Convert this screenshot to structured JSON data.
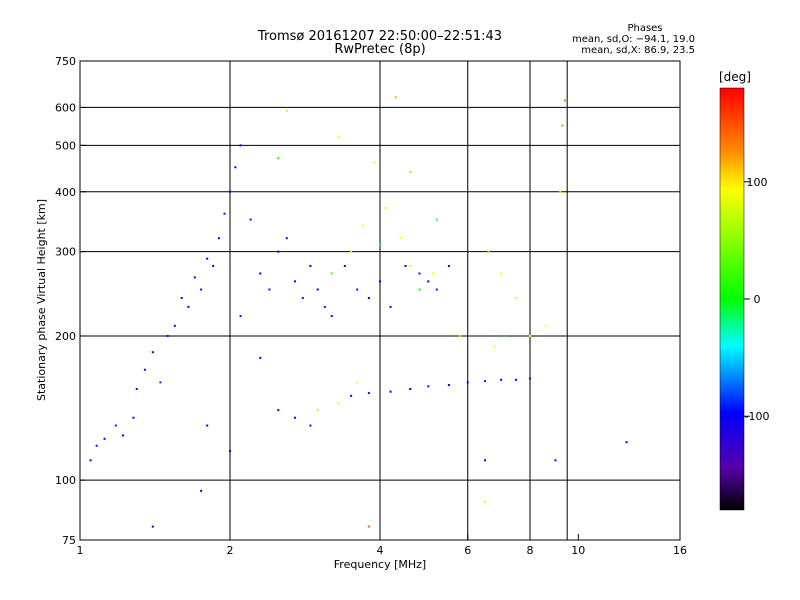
{
  "chart_data": {
    "type": "scatter",
    "title": "Tromsø 20161207 22:50:00–22:51:43",
    "subtitle": "RwPretec (8p)",
    "xlabel": "Frequency [MHz]",
    "ylabel": "Stationary phase Virtual Height [km]",
    "x_scale": "log",
    "y_scale": "log",
    "xlim": [
      1,
      16
    ],
    "ylim": [
      75,
      750
    ],
    "x_ticks": [
      1,
      2,
      4,
      6,
      8,
      10,
      16
    ],
    "y_ticks": [
      75,
      100,
      200,
      300,
      400,
      500,
      600,
      750
    ],
    "x_grid": [
      2,
      4,
      6,
      8,
      9.5
    ],
    "y_grid": [
      100,
      200,
      300,
      400,
      500,
      600
    ],
    "stats": {
      "heading": "Phases",
      "o_line": "mean, sd,O: −94.1, 19.0",
      "x_line": "mean, sd,X:  86.9, 23.5"
    },
    "colorbar": {
      "label": "[deg]",
      "range": [
        -180,
        180
      ],
      "ticks": [
        100,
        0,
        -100
      ],
      "colors": [
        "#ff0000",
        "#ffa500",
        "#ffff00",
        "#00ff00",
        "#00ffff",
        "#0000ff",
        "#6600aa",
        "#000000"
      ]
    },
    "series": [
      {
        "points": [
          [
            1.05,
            110,
            -100
          ],
          [
            1.08,
            118,
            -95
          ],
          [
            1.12,
            122,
            -100
          ],
          [
            1.18,
            130,
            -90
          ],
          [
            1.22,
            124,
            -110
          ],
          [
            1.28,
            135,
            -100
          ],
          [
            1.3,
            155,
            -95
          ],
          [
            1.35,
            170,
            -100
          ],
          [
            1.4,
            185,
            -105
          ],
          [
            1.45,
            160,
            -90
          ],
          [
            1.5,
            200,
            -100
          ],
          [
            1.55,
            210,
            -95
          ],
          [
            1.6,
            240,
            -100
          ],
          [
            1.65,
            230,
            -110
          ],
          [
            1.7,
            265,
            -100
          ],
          [
            1.75,
            250,
            -95
          ],
          [
            1.8,
            290,
            -100
          ],
          [
            1.85,
            280,
            -105
          ],
          [
            1.9,
            320,
            -100
          ],
          [
            1.95,
            360,
            -95
          ],
          [
            2.0,
            400,
            -100
          ],
          [
            2.05,
            450,
            -110
          ],
          [
            2.1,
            500,
            -100
          ],
          [
            2.2,
            350,
            -95
          ],
          [
            2.3,
            270,
            -100
          ],
          [
            2.4,
            250,
            -95
          ],
          [
            2.5,
            300,
            -100
          ],
          [
            2.6,
            320,
            -110
          ],
          [
            2.7,
            260,
            -100
          ],
          [
            2.8,
            240,
            -95
          ],
          [
            2.9,
            280,
            -100
          ],
          [
            3.0,
            250,
            -100
          ],
          [
            3.1,
            230,
            -95
          ],
          [
            3.2,
            220,
            -100
          ],
          [
            3.4,
            280,
            -100
          ],
          [
            3.6,
            250,
            -95
          ],
          [
            3.8,
            240,
            -100
          ],
          [
            4.0,
            260,
            -100
          ],
          [
            4.2,
            230,
            -110
          ],
          [
            4.5,
            280,
            -100
          ],
          [
            4.8,
            270,
            -95
          ],
          [
            5.0,
            260,
            -100
          ],
          [
            5.2,
            250,
            -95
          ],
          [
            5.5,
            280,
            -100
          ],
          [
            3.5,
            150,
            -100
          ],
          [
            3.8,
            152,
            -95
          ],
          [
            4.2,
            153,
            -100
          ],
          [
            4.6,
            155,
            -100
          ],
          [
            5.0,
            157,
            -95
          ],
          [
            5.5,
            158,
            -100
          ],
          [
            6.0,
            160,
            -100
          ],
          [
            6.5,
            161,
            -95
          ],
          [
            7.0,
            162,
            -100
          ],
          [
            7.5,
            162,
            -100
          ],
          [
            8.0,
            163,
            -95
          ],
          [
            2.5,
            140,
            -100
          ],
          [
            2.7,
            135,
            -100
          ],
          [
            2.9,
            130,
            -95
          ],
          [
            1.8,
            130,
            -100
          ],
          [
            2.0,
            115,
            -100
          ],
          [
            2.3,
            180,
            -100
          ],
          [
            2.1,
            220,
            -95
          ],
          [
            3.2,
            270,
            30
          ],
          [
            3.5,
            300,
            80
          ],
          [
            3.7,
            340,
            100
          ],
          [
            4.1,
            370,
            90
          ],
          [
            4.4,
            320,
            100
          ],
          [
            4.6,
            280,
            90
          ],
          [
            5.1,
            270,
            100
          ],
          [
            5.8,
            200,
            110
          ],
          [
            3.3,
            145,
            100
          ],
          [
            3.0,
            140,
            110
          ],
          [
            3.6,
            160,
            90
          ],
          [
            7.0,
            270,
            100
          ],
          [
            7.5,
            240,
            90
          ],
          [
            8.0,
            200,
            100
          ],
          [
            8.6,
            210,
            100
          ],
          [
            6.6,
            300,
            120
          ],
          [
            6.8,
            190,
            100
          ],
          [
            9.2,
            400,
            110
          ],
          [
            9.3,
            550,
            140
          ],
          [
            9.4,
            620,
            150
          ],
          [
            4.3,
            630,
            130
          ],
          [
            3.3,
            520,
            90
          ],
          [
            3.9,
            460,
            100
          ],
          [
            2.6,
            590,
            80
          ],
          [
            2.5,
            470,
            20
          ],
          [
            4.0,
            310,
            -10
          ],
          [
            4.8,
            250,
            0
          ],
          [
            5.2,
            350,
            -20
          ],
          [
            4.6,
            440,
            70
          ],
          [
            6.5,
            110,
            -100
          ],
          [
            7.1,
            200,
            -10
          ],
          [
            9.0,
            110,
            -100
          ],
          [
            12.5,
            120,
            -100
          ],
          [
            1.4,
            80,
            -100
          ],
          [
            1.75,
            95,
            -100
          ],
          [
            3.8,
            80,
            150
          ],
          [
            6.5,
            90,
            90
          ]
        ]
      }
    ]
  }
}
